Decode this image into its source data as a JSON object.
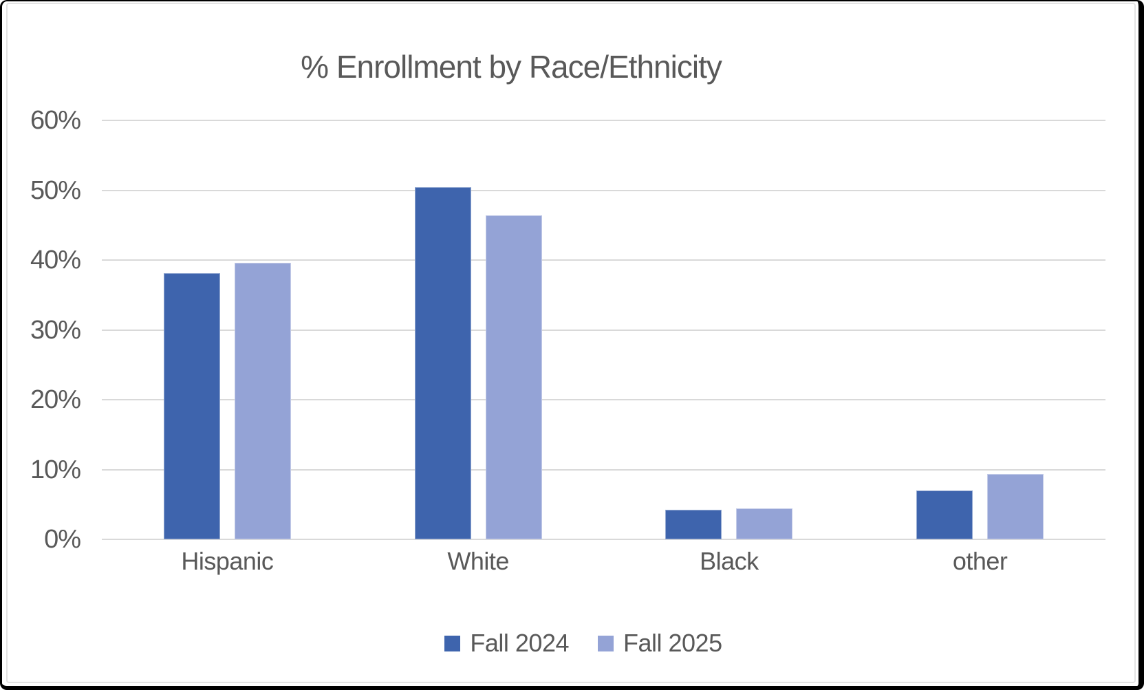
{
  "chart": {
    "accent_colors": {
      "fall_2024": "#3E64AD",
      "fall_2025": "#94A3D6"
    },
    "text_color": "#595959",
    "gridline_color": "#D9D9D9",
    "frame_border_color": "#000000"
  },
  "chart_data": {
    "type": "bar",
    "title": "% Enrollment by Race/Ethnicity",
    "categories": [
      "Hispanic",
      "White",
      "Black",
      "other"
    ],
    "series": [
      {
        "name": "Fall 2024",
        "color": "#3E64AD",
        "values": [
          38.1,
          50.4,
          4.2,
          7.0
        ]
      },
      {
        "name": "Fall 2025",
        "color": "#94A3D6",
        "values": [
          39.6,
          46.4,
          4.4,
          9.4
        ]
      }
    ],
    "xlabel": "",
    "ylabel": "",
    "ylim": [
      0,
      60
    ],
    "yticks": [
      {
        "value": 0,
        "label": "0%"
      },
      {
        "value": 10,
        "label": "10%"
      },
      {
        "value": 20,
        "label": "20%"
      },
      {
        "value": 30,
        "label": "30%"
      },
      {
        "value": 40,
        "label": "40%"
      },
      {
        "value": 50,
        "label": "50%"
      },
      {
        "value": 60,
        "label": "60%"
      }
    ],
    "grid": true,
    "legend_position": "bottom"
  }
}
